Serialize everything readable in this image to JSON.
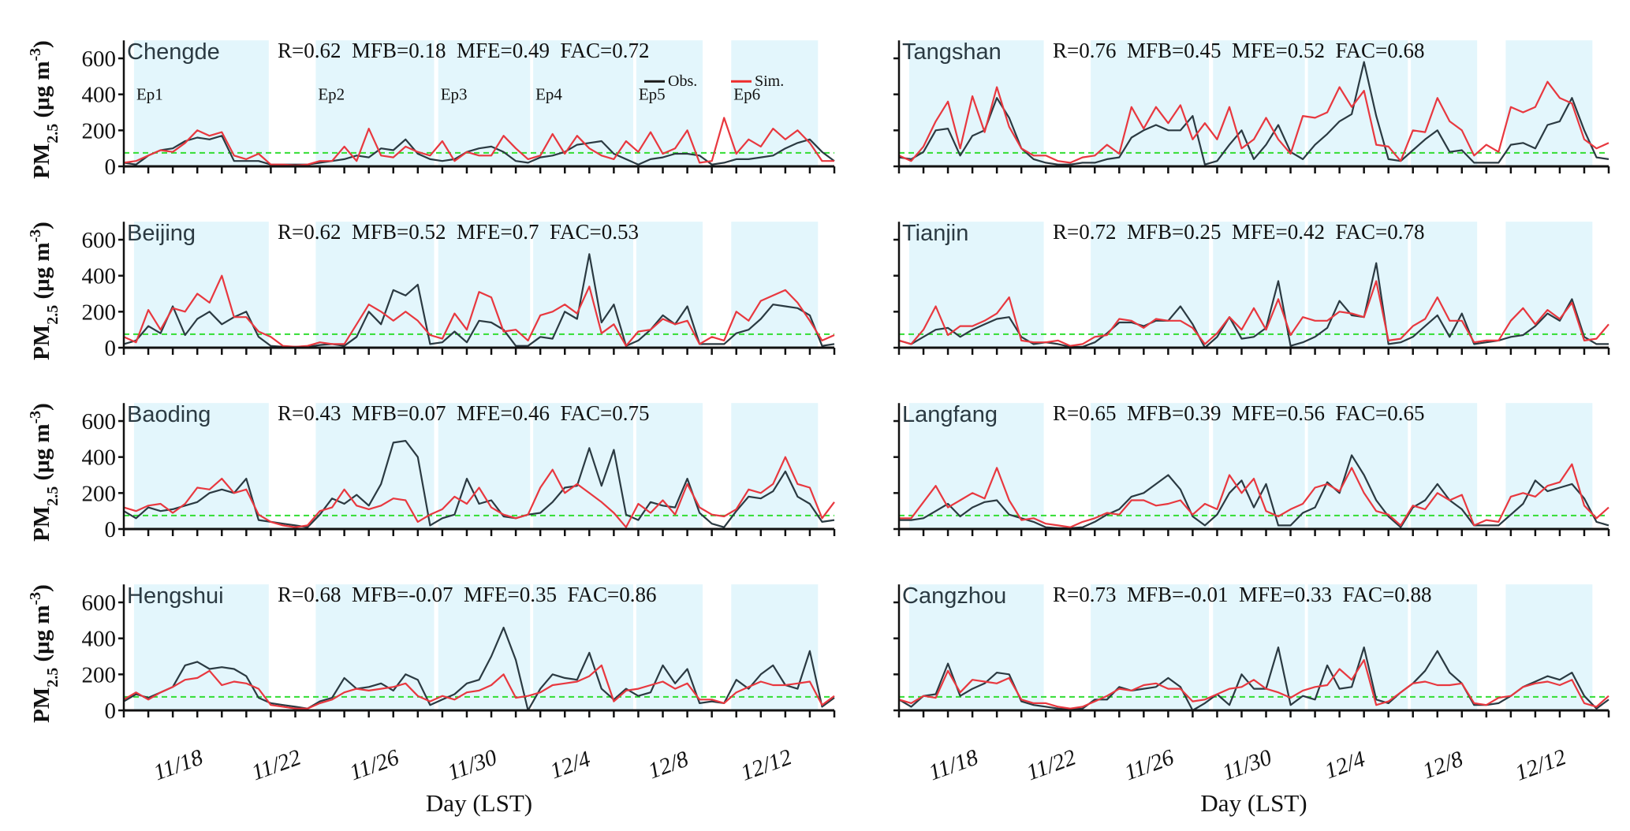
{
  "chart_data": [
    {
      "type": "line",
      "layout": "4x2 grid of panels",
      "xlabel": "Day (LST)",
      "ylabel": {
        "main": "PM",
        "sub": "2.5",
        "unit_open": " (μg m",
        "sup": "-3",
        "unit_close": ")"
      },
      "x_start": "11/16 00:00",
      "x_step_hours": 12,
      "xlim": [
        "11/16",
        "12/15"
      ],
      "x_tick_labels": [
        "11/18",
        "11/22",
        "11/26",
        "11/30",
        "12/4",
        "12/8",
        "12/12"
      ],
      "ylim": [
        0,
        700
      ],
      "y_ticks": [
        "0",
        "200",
        "400",
        "600"
      ],
      "reference_line": {
        "value": 75,
        "style": "dashed",
        "color": "#33dd33"
      },
      "legend": {
        "placement": "top-right of Chengde panel",
        "entries": [
          {
            "name": "Obs.",
            "color": "#1a1a1a"
          },
          {
            "name": "Sim.",
            "color": "#ee2b2b"
          }
        ]
      },
      "colors": {
        "obs": "#2b3a42",
        "sim": "#e8383f",
        "episode_shading": "#e3f6fc"
      },
      "episodes": [
        {
          "label": "Ep1",
          "start": "11/16 10:00",
          "end": "11/21 22:00"
        },
        {
          "label": "Ep2",
          "start": "11/23 20:00",
          "end": "11/28 16:00"
        },
        {
          "label": "Ep3",
          "start": "11/28 20:00",
          "end": "12/2 14:00"
        },
        {
          "label": "Ep4",
          "start": "12/2 17:00",
          "end": "12/6 19:00"
        },
        {
          "label": "Ep5",
          "start": "12/6 22:00",
          "end": "12/9 15:00"
        },
        {
          "label": "Ep6",
          "start": "12/10 19:00",
          "end": "12/14 08:00"
        }
      ],
      "panels": [
        {
          "site": "Chengde",
          "stats": "R=0.62  MFB=0.18  MFE=0.49  FAC=0.72",
          "show_episode_labels": true,
          "show_legend": true,
          "obs": [
            20,
            10,
            60,
            90,
            100,
            140,
            160,
            150,
            170,
            30,
            30,
            30,
            10,
            10,
            10,
            10,
            20,
            30,
            40,
            60,
            50,
            100,
            90,
            150,
            70,
            40,
            30,
            40,
            80,
            100,
            110,
            80,
            30,
            20,
            50,
            60,
            80,
            120,
            130,
            140,
            70,
            40,
            10,
            40,
            50,
            70,
            70,
            60,
            10,
            20,
            40,
            40,
            50,
            60,
            100,
            130,
            150,
            80,
            30
          ],
          "sim": [
            20,
            30,
            60,
            90,
            80,
            130,
            200,
            170,
            190,
            60,
            40,
            70,
            10,
            10,
            5,
            10,
            30,
            30,
            110,
            30,
            210,
            60,
            50,
            110,
            80,
            60,
            140,
            30,
            80,
            60,
            60,
            170,
            100,
            40,
            60,
            180,
            70,
            170,
            100,
            60,
            40,
            140,
            80,
            190,
            70,
            100,
            200,
            20,
            30,
            270,
            70,
            150,
            110,
            210,
            150,
            200,
            130,
            30,
            30
          ]
        },
        {
          "site": "Tangshan",
          "stats": "R=0.76  MFB=0.45  MFE=0.52  FAC=0.68",
          "obs": [
            50,
            40,
            80,
            200,
            210,
            60,
            170,
            200,
            380,
            270,
            100,
            40,
            20,
            10,
            10,
            20,
            20,
            40,
            50,
            160,
            200,
            230,
            200,
            200,
            280,
            10,
            30,
            120,
            200,
            40,
            120,
            230,
            80,
            40,
            120,
            180,
            250,
            290,
            580,
            280,
            40,
            30,
            90,
            150,
            200,
            80,
            90,
            20,
            20,
            20,
            120,
            130,
            100,
            230,
            250,
            380,
            200,
            50,
            40
          ],
          "sim": [
            60,
            30,
            110,
            250,
            360,
            100,
            390,
            190,
            440,
            220,
            100,
            60,
            60,
            30,
            20,
            50,
            60,
            120,
            70,
            330,
            210,
            330,
            240,
            340,
            150,
            240,
            150,
            330,
            100,
            150,
            270,
            150,
            70,
            280,
            270,
            300,
            440,
            330,
            420,
            120,
            110,
            30,
            200,
            190,
            380,
            250,
            200,
            60,
            120,
            80,
            330,
            300,
            330,
            470,
            380,
            350,
            150,
            100,
            130
          ]
        },
        {
          "site": "Beijing",
          "stats": "R=0.62  MFB=0.52  MFE=0.7  FAC=0.53",
          "obs": [
            20,
            40,
            120,
            80,
            230,
            70,
            160,
            200,
            130,
            170,
            200,
            60,
            10,
            5,
            5,
            5,
            15,
            20,
            10,
            60,
            200,
            130,
            320,
            290,
            350,
            20,
            30,
            90,
            30,
            150,
            140,
            100,
            10,
            10,
            60,
            50,
            200,
            160,
            520,
            140,
            240,
            10,
            40,
            100,
            180,
            130,
            230,
            20,
            20,
            20,
            80,
            100,
            160,
            240,
            230,
            220,
            180,
            10,
            20
          ],
          "sim": [
            60,
            30,
            210,
            100,
            220,
            200,
            300,
            250,
            400,
            170,
            170,
            90,
            60,
            10,
            5,
            10,
            30,
            20,
            20,
            130,
            240,
            200,
            150,
            200,
            150,
            70,
            50,
            190,
            100,
            310,
            280,
            90,
            100,
            40,
            180,
            200,
            240,
            190,
            340,
            80,
            130,
            10,
            90,
            100,
            160,
            130,
            150,
            20,
            60,
            40,
            200,
            150,
            260,
            290,
            320,
            250,
            150,
            40,
            70
          ]
        },
        {
          "site": "Tianjin",
          "stats": "R=0.72  MFB=0.25  MFE=0.42  FAC=0.78",
          "obs": [
            40,
            20,
            60,
            100,
            110,
            60,
            100,
            130,
            160,
            170,
            60,
            20,
            30,
            20,
            5,
            5,
            30,
            80,
            140,
            140,
            120,
            150,
            150,
            230,
            130,
            0,
            60,
            170,
            50,
            60,
            110,
            370,
            10,
            30,
            60,
            110,
            260,
            180,
            170,
            470,
            20,
            30,
            60,
            120,
            180,
            60,
            190,
            20,
            30,
            40,
            60,
            70,
            120,
            190,
            150,
            270,
            60,
            20,
            20
          ],
          "sim": [
            40,
            20,
            100,
            230,
            70,
            120,
            120,
            150,
            190,
            280,
            40,
            30,
            30,
            40,
            10,
            20,
            60,
            70,
            160,
            150,
            110,
            160,
            150,
            150,
            110,
            20,
            80,
            170,
            100,
            220,
            100,
            270,
            70,
            170,
            150,
            150,
            200,
            190,
            170,
            370,
            40,
            50,
            120,
            160,
            280,
            150,
            150,
            30,
            40,
            40,
            150,
            220,
            130,
            210,
            160,
            250,
            40,
            50,
            130
          ]
        },
        {
          "site": "Baoding",
          "stats": "R=0.43  MFB=0.07  MFE=0.46  FAC=0.75",
          "obs": [
            100,
            60,
            120,
            100,
            110,
            130,
            150,
            200,
            220,
            200,
            280,
            50,
            40,
            30,
            20,
            10,
            80,
            170,
            140,
            190,
            130,
            250,
            480,
            490,
            400,
            20,
            60,
            80,
            280,
            140,
            160,
            70,
            60,
            80,
            90,
            150,
            230,
            240,
            450,
            240,
            440,
            80,
            50,
            150,
            130,
            120,
            280,
            90,
            30,
            10,
            100,
            180,
            170,
            210,
            320,
            180,
            140,
            40,
            50
          ],
          "sim": [
            120,
            100,
            130,
            140,
            90,
            140,
            230,
            220,
            280,
            200,
            220,
            80,
            40,
            20,
            10,
            20,
            100,
            120,
            220,
            130,
            110,
            130,
            170,
            160,
            40,
            80,
            110,
            180,
            140,
            230,
            120,
            80,
            60,
            80,
            230,
            330,
            200,
            250,
            200,
            150,
            90,
            10,
            140,
            90,
            160,
            80,
            250,
            120,
            80,
            70,
            110,
            220,
            200,
            250,
            400,
            250,
            230,
            60,
            150
          ]
        },
        {
          "site": "Langfang",
          "stats": "R=0.65  MFB=0.39  MFE=0.56  FAC=0.65",
          "obs": [
            50,
            50,
            60,
            100,
            140,
            70,
            120,
            150,
            160,
            80,
            60,
            40,
            10,
            5,
            5,
            10,
            40,
            80,
            110,
            180,
            200,
            250,
            300,
            220,
            70,
            20,
            80,
            200,
            270,
            120,
            250,
            20,
            20,
            90,
            120,
            260,
            200,
            410,
            300,
            160,
            70,
            10,
            120,
            160,
            250,
            160,
            110,
            20,
            20,
            20,
            80,
            140,
            270,
            210,
            230,
            250,
            170,
            40,
            20
          ],
          "sim": [
            60,
            60,
            150,
            240,
            120,
            160,
            200,
            170,
            340,
            160,
            50,
            60,
            30,
            20,
            10,
            40,
            60,
            90,
            80,
            160,
            160,
            130,
            140,
            160,
            80,
            140,
            110,
            300,
            200,
            280,
            100,
            70,
            110,
            140,
            230,
            250,
            210,
            340,
            200,
            100,
            80,
            20,
            130,
            110,
            200,
            160,
            190,
            20,
            50,
            40,
            180,
            200,
            180,
            240,
            260,
            360,
            130,
            60,
            120
          ]
        },
        {
          "site": "Hengshui",
          "stats": "R=0.68  MFB=-0.07  MFE=0.35  FAC=0.86",
          "obs": [
            50,
            90,
            70,
            100,
            130,
            250,
            270,
            230,
            240,
            230,
            190,
            70,
            40,
            30,
            20,
            10,
            50,
            70,
            180,
            120,
            130,
            150,
            110,
            200,
            170,
            30,
            60,
            90,
            150,
            170,
            300,
            460,
            280,
            0,
            120,
            200,
            180,
            170,
            320,
            120,
            60,
            120,
            80,
            100,
            250,
            150,
            230,
            40,
            50,
            40,
            170,
            120,
            200,
            250,
            140,
            120,
            330,
            20,
            70
          ],
          "sim": [
            60,
            100,
            60,
            100,
            130,
            170,
            180,
            220,
            140,
            160,
            150,
            120,
            30,
            20,
            10,
            10,
            40,
            60,
            100,
            120,
            110,
            120,
            130,
            150,
            80,
            50,
            80,
            60,
            100,
            110,
            140,
            200,
            70,
            80,
            100,
            140,
            150,
            160,
            190,
            250,
            50,
            110,
            120,
            140,
            160,
            120,
            150,
            60,
            60,
            40,
            100,
            130,
            160,
            140,
            140,
            150,
            160,
            30,
            80
          ]
        },
        {
          "site": "Cangzhou",
          "stats": "R=0.73  MFB=-0.01  MFE=0.33  FAC=0.88",
          "obs": [
            60,
            20,
            80,
            90,
            260,
            80,
            120,
            150,
            210,
            200,
            50,
            30,
            20,
            10,
            5,
            10,
            60,
            60,
            130,
            110,
            120,
            130,
            180,
            130,
            0,
            40,
            90,
            30,
            200,
            120,
            120,
            350,
            30,
            80,
            60,
            250,
            120,
            130,
            350,
            60,
            40,
            100,
            150,
            220,
            330,
            210,
            150,
            30,
            30,
            40,
            80,
            130,
            160,
            190,
            170,
            210,
            80,
            10,
            60
          ],
          "sim": [
            60,
            40,
            80,
            70,
            220,
            100,
            170,
            160,
            150,
            180,
            60,
            40,
            40,
            20,
            10,
            20,
            50,
            80,
            120,
            110,
            140,
            150,
            120,
            120,
            50,
            60,
            90,
            120,
            130,
            170,
            120,
            100,
            70,
            110,
            130,
            140,
            230,
            170,
            280,
            30,
            50,
            100,
            150,
            160,
            140,
            140,
            150,
            40,
            30,
            70,
            80,
            130,
            150,
            160,
            140,
            170,
            40,
            20,
            80
          ]
        }
      ]
    }
  ]
}
